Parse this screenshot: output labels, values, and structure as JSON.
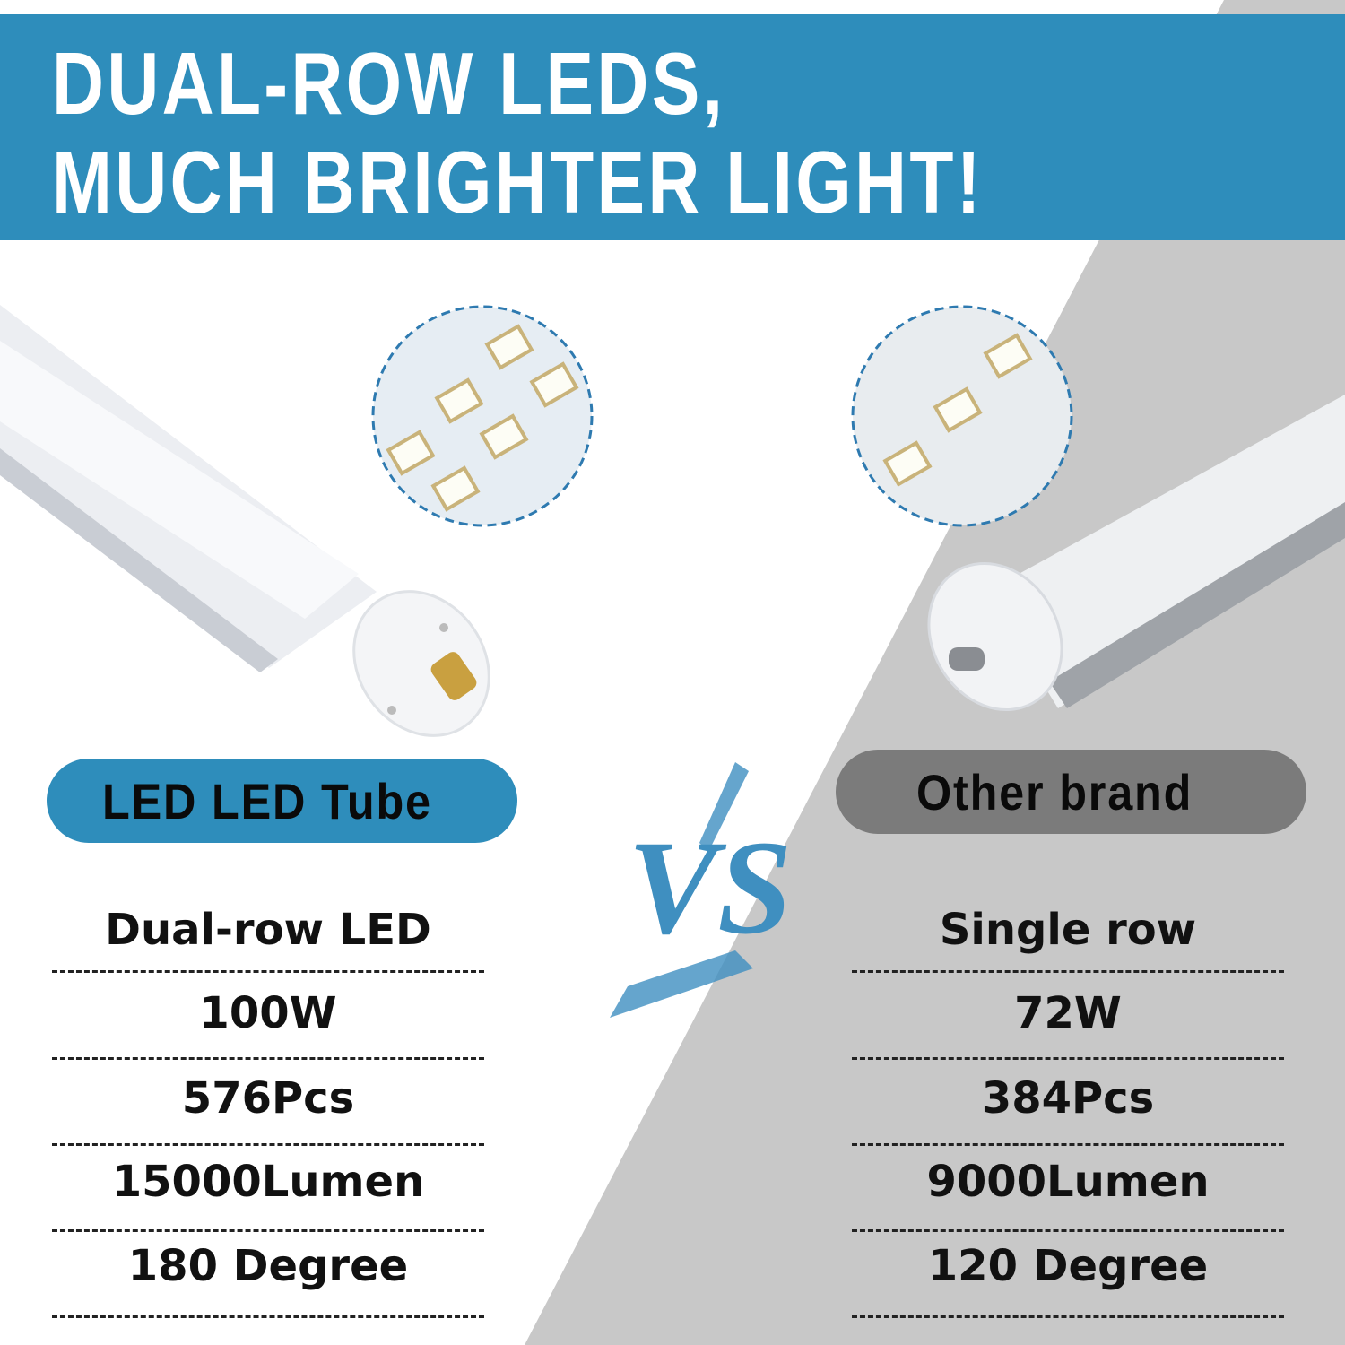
{
  "headline": {
    "line1": "DUAL-ROW LEDS,",
    "line2": "MUCH BRIGHTER LIGHT!"
  },
  "colors": {
    "accent": "#2e8dbb",
    "gray_panel": "#c8c8c8",
    "other_badge": "#7b7b7b"
  },
  "vs_label": "VS",
  "left": {
    "badge": "LED LED Tube",
    "specs": [
      "Dual-row LED",
      "100W",
      "576Pcs",
      "15000Lumen",
      "180 Degree"
    ]
  },
  "right": {
    "badge": "Other brand",
    "specs": [
      "Single row",
      "72W",
      "384Pcs",
      "9000Lumen",
      "120 Degree"
    ]
  }
}
